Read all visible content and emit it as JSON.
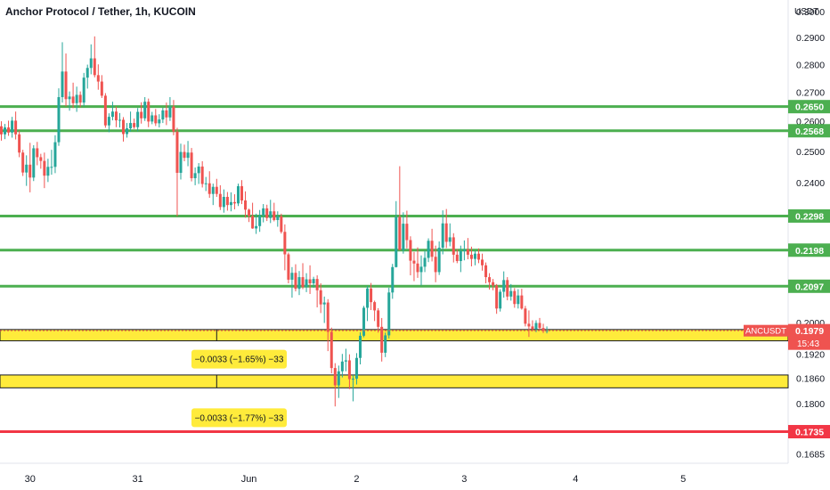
{
  "header": {
    "title": "Anchor Protocol / Tether, 1h, KUCOIN"
  },
  "colors": {
    "up": "#26a69a",
    "down": "#ef5350",
    "level_green": "#4caf50",
    "level_red": "#f23645",
    "zone_fill": "#ffeb3b",
    "current_price_tag": "#ef5350",
    "axis_text": "#131722"
  },
  "chart_data": {
    "type": "candlestick",
    "title": "Anchor Protocol / Tether, 1h, KUCOIN",
    "symbol": "ANCUSDT",
    "currency": "USDT",
    "ylim": [
      0.1665,
      0.3045
    ],
    "y_scale": "log",
    "y_ticks": [
      "0.3000",
      "0.2900",
      "0.2800",
      "0.2700",
      "0.2600",
      "0.2500",
      "0.2400",
      "0.2300",
      "0.2200",
      "0.2100",
      "0.2000",
      "0.1920",
      "0.1860",
      "0.1800",
      "0.1685"
    ],
    "x_ticks": [
      {
        "label": "30",
        "slot": 8
      },
      {
        "label": "31",
        "slot": 38
      },
      {
        "label": "Jun",
        "slot": 69
      },
      {
        "label": "2",
        "slot": 99
      },
      {
        "label": "3",
        "slot": 129
      },
      {
        "label": "4",
        "slot": 160
      },
      {
        "label": "5",
        "slot": 190
      }
    ],
    "horizontal_levels": [
      {
        "price": 0.265,
        "label": "0.2650",
        "color": "green"
      },
      {
        "price": 0.2568,
        "label": "0.2568",
        "color": "green"
      },
      {
        "price": 0.2298,
        "label": "0.2298",
        "color": "green"
      },
      {
        "price": 0.2198,
        "label": "0.2198",
        "color": "green"
      },
      {
        "price": 0.2097,
        "label": "0.2097",
        "color": "green"
      },
      {
        "price": 0.1735,
        "label": "0.1735",
        "color": "red"
      }
    ],
    "zones": [
      {
        "top": 0.1982,
        "bottom": 0.1953,
        "label": "−0.0033 (−1.65%) −33",
        "divider_slot": 60
      },
      {
        "top": 0.1868,
        "bottom": 0.1837,
        "label": "−0.0033 (−1.77%) −33",
        "divider_slot": 60
      }
    ],
    "current_price": {
      "value": 0.1979,
      "label": "0.1979",
      "symbol_label": "ANCUSDT",
      "countdown": "15:43"
    },
    "candles": [
      [
        0.2583,
        0.26,
        0.2535,
        0.2556
      ],
      [
        0.2556,
        0.2591,
        0.254,
        0.2579
      ],
      [
        0.2579,
        0.2602,
        0.2551,
        0.2562
      ],
      [
        0.2562,
        0.2615,
        0.2545,
        0.2602
      ],
      [
        0.2602,
        0.2633,
        0.2539,
        0.2556
      ],
      [
        0.2556,
        0.2568,
        0.2481,
        0.2496
      ],
      [
        0.2496,
        0.2505,
        0.2421,
        0.2432
      ],
      [
        0.2432,
        0.2487,
        0.239,
        0.2457
      ],
      [
        0.2457,
        0.2528,
        0.237,
        0.2416
      ],
      [
        0.2416,
        0.252,
        0.2405,
        0.251
      ],
      [
        0.251,
        0.2531,
        0.2455,
        0.2481
      ],
      [
        0.2481,
        0.2492,
        0.2444,
        0.2469
      ],
      [
        0.2469,
        0.2496,
        0.2383,
        0.2422
      ],
      [
        0.2422,
        0.2476,
        0.2402,
        0.245
      ],
      [
        0.245,
        0.2505,
        0.2425,
        0.245
      ],
      [
        0.245,
        0.2553,
        0.243,
        0.253
      ],
      [
        0.253,
        0.2714,
        0.2518,
        0.2683
      ],
      [
        0.2683,
        0.2882,
        0.2664,
        0.2774
      ],
      [
        0.2774,
        0.284,
        0.2651,
        0.2676
      ],
      [
        0.2676,
        0.2703,
        0.2636,
        0.2685
      ],
      [
        0.2685,
        0.2734,
        0.2645,
        0.2662
      ],
      [
        0.2662,
        0.272,
        0.2632,
        0.2691
      ],
      [
        0.2691,
        0.2703,
        0.2648,
        0.2664
      ],
      [
        0.2664,
        0.2769,
        0.2651,
        0.2752
      ],
      [
        0.2752,
        0.2799,
        0.2713,
        0.2787
      ],
      [
        0.2787,
        0.2874,
        0.2764,
        0.2822
      ],
      [
        0.2822,
        0.2904,
        0.2753,
        0.2761
      ],
      [
        0.2761,
        0.28,
        0.2709,
        0.2738
      ],
      [
        0.2738,
        0.2761,
        0.268,
        0.2688
      ],
      [
        0.2688,
        0.2697,
        0.2578,
        0.2586
      ],
      [
        0.2586,
        0.2627,
        0.2563,
        0.2615
      ],
      [
        0.2615,
        0.2667,
        0.2603,
        0.2633
      ],
      [
        0.2633,
        0.265,
        0.258,
        0.2603
      ],
      [
        0.2603,
        0.2628,
        0.2579,
        0.2605
      ],
      [
        0.2605,
        0.2614,
        0.2532,
        0.2557
      ],
      [
        0.2557,
        0.2594,
        0.2545,
        0.2576
      ],
      [
        0.2576,
        0.2633,
        0.2565,
        0.2594
      ],
      [
        0.2594,
        0.2609,
        0.2574,
        0.258
      ],
      [
        0.258,
        0.2645,
        0.2566,
        0.2632
      ],
      [
        0.2632,
        0.2665,
        0.2592,
        0.261
      ],
      [
        0.261,
        0.2683,
        0.2601,
        0.2667
      ],
      [
        0.2667,
        0.2678,
        0.258,
        0.2599
      ],
      [
        0.2599,
        0.2632,
        0.259,
        0.262
      ],
      [
        0.262,
        0.2642,
        0.2584,
        0.2593
      ],
      [
        0.2593,
        0.2624,
        0.2579,
        0.2606
      ],
      [
        0.2606,
        0.2646,
        0.2594,
        0.2637
      ],
      [
        0.2637,
        0.2664,
        0.2587,
        0.2613
      ],
      [
        0.2613,
        0.2683,
        0.2601,
        0.265
      ],
      [
        0.265,
        0.2673,
        0.2553,
        0.2565
      ],
      [
        0.2565,
        0.2578,
        0.2297,
        0.2431
      ],
      [
        0.2431,
        0.2525,
        0.241,
        0.2498
      ],
      [
        0.2498,
        0.2522,
        0.2468,
        0.2479
      ],
      [
        0.2479,
        0.2534,
        0.2452,
        0.2496
      ],
      [
        0.2496,
        0.2511,
        0.2404,
        0.2414
      ],
      [
        0.2414,
        0.2448,
        0.2392,
        0.243
      ],
      [
        0.243,
        0.2462,
        0.2396,
        0.2451
      ],
      [
        0.2451,
        0.2468,
        0.2385,
        0.2396
      ],
      [
        0.2396,
        0.2418,
        0.2374,
        0.2398
      ],
      [
        0.2398,
        0.2436,
        0.2353,
        0.2365
      ],
      [
        0.2365,
        0.2397,
        0.2331,
        0.2387
      ],
      [
        0.2387,
        0.2412,
        0.2356,
        0.2365
      ],
      [
        0.2365,
        0.2392,
        0.2316,
        0.2325
      ],
      [
        0.2325,
        0.2379,
        0.2308,
        0.2356
      ],
      [
        0.2356,
        0.2371,
        0.2314,
        0.2331
      ],
      [
        0.2331,
        0.237,
        0.2312,
        0.234
      ],
      [
        0.234,
        0.2364,
        0.2318,
        0.2336
      ],
      [
        0.2336,
        0.2397,
        0.2328,
        0.2389
      ],
      [
        0.2389,
        0.2408,
        0.2334,
        0.2345
      ],
      [
        0.2345,
        0.2373,
        0.2293,
        0.2317
      ],
      [
        0.2317,
        0.232,
        0.228,
        0.2298
      ],
      [
        0.2298,
        0.2338,
        0.226,
        0.2261
      ],
      [
        0.2261,
        0.2305,
        0.2245,
        0.2268
      ],
      [
        0.2268,
        0.2316,
        0.2251,
        0.23
      ],
      [
        0.23,
        0.2334,
        0.2279,
        0.2321
      ],
      [
        0.2321,
        0.2332,
        0.2283,
        0.2292
      ],
      [
        0.2292,
        0.2347,
        0.2277,
        0.2312
      ],
      [
        0.2312,
        0.2338,
        0.2282,
        0.2286
      ],
      [
        0.2286,
        0.2312,
        0.2266,
        0.2297
      ],
      [
        0.2297,
        0.2305,
        0.2246,
        0.2251
      ],
      [
        0.2251,
        0.2273,
        0.2141,
        0.2186
      ],
      [
        0.2186,
        0.2191,
        0.2105,
        0.2115
      ],
      [
        0.2115,
        0.215,
        0.2066,
        0.2134
      ],
      [
        0.2134,
        0.2158,
        0.2083,
        0.209
      ],
      [
        0.209,
        0.2139,
        0.2073,
        0.2122
      ],
      [
        0.2122,
        0.2161,
        0.2089,
        0.2095
      ],
      [
        0.2095,
        0.2133,
        0.2081,
        0.2116
      ],
      [
        0.2116,
        0.2155,
        0.2076,
        0.2105
      ],
      [
        0.2105,
        0.2123,
        0.2093,
        0.2117
      ],
      [
        0.2117,
        0.2127,
        0.204,
        0.2086
      ],
      [
        0.2086,
        0.2105,
        0.2025,
        0.2048
      ],
      [
        0.2048,
        0.2069,
        0.1999,
        0.2053
      ],
      [
        0.2053,
        0.2062,
        0.1927,
        0.1976
      ],
      [
        0.1976,
        0.1987,
        0.1872,
        0.1885
      ],
      [
        0.1885,
        0.1897,
        0.1793,
        0.1843
      ],
      [
        0.1843,
        0.1891,
        0.1813,
        0.1877
      ],
      [
        0.1877,
        0.192,
        0.1862,
        0.1901
      ],
      [
        0.1901,
        0.1933,
        0.1877,
        0.1904
      ],
      [
        0.1904,
        0.1919,
        0.1834,
        0.1858
      ],
      [
        0.1858,
        0.1868,
        0.1805,
        0.1859
      ],
      [
        0.1859,
        0.1922,
        0.1845,
        0.191
      ],
      [
        0.191,
        0.1975,
        0.1894,
        0.1966
      ],
      [
        0.1966,
        0.2044,
        0.1962,
        0.2039
      ],
      [
        0.2039,
        0.2098,
        0.2004,
        0.2091
      ],
      [
        0.2091,
        0.2106,
        0.2033,
        0.2054
      ],
      [
        0.2054,
        0.2058,
        0.2004,
        0.2032
      ],
      [
        0.2032,
        0.2038,
        0.1974,
        0.1989
      ],
      [
        0.1989,
        0.2012,
        0.1901,
        0.1923
      ],
      [
        0.1923,
        0.1974,
        0.1912,
        0.1967
      ],
      [
        0.1967,
        0.2093,
        0.1959,
        0.208
      ],
      [
        0.208,
        0.2159,
        0.2063,
        0.215
      ],
      [
        0.215,
        0.2343,
        0.2149,
        0.2295
      ],
      [
        0.2295,
        0.2452,
        0.2198,
        0.2198
      ],
      [
        0.2198,
        0.2309,
        0.2188,
        0.2275
      ],
      [
        0.2275,
        0.2314,
        0.2203,
        0.2227
      ],
      [
        0.2227,
        0.2238,
        0.2127,
        0.2168
      ],
      [
        0.2168,
        0.2193,
        0.2111,
        0.216
      ],
      [
        0.216,
        0.2206,
        0.212,
        0.2136
      ],
      [
        0.2136,
        0.2183,
        0.2099,
        0.2151
      ],
      [
        0.2151,
        0.2197,
        0.2136,
        0.2176
      ],
      [
        0.2176,
        0.2232,
        0.2164,
        0.2225
      ],
      [
        0.2225,
        0.226,
        0.2166,
        0.2179
      ],
      [
        0.2179,
        0.2211,
        0.2108,
        0.2136
      ],
      [
        0.2136,
        0.2223,
        0.2128,
        0.2205
      ],
      [
        0.2205,
        0.2315,
        0.2186,
        0.2276
      ],
      [
        0.2276,
        0.2319,
        0.2204,
        0.2222
      ],
      [
        0.2222,
        0.2276,
        0.2209,
        0.2235
      ],
      [
        0.2235,
        0.2247,
        0.2163,
        0.2185
      ],
      [
        0.2185,
        0.2201,
        0.2161,
        0.2167
      ],
      [
        0.2167,
        0.2211,
        0.2136,
        0.2195
      ],
      [
        0.2195,
        0.2226,
        0.2169,
        0.22
      ],
      [
        0.22,
        0.2233,
        0.2172,
        0.2185
      ],
      [
        0.2185,
        0.2208,
        0.2152,
        0.2173
      ],
      [
        0.2173,
        0.2197,
        0.2155,
        0.2188
      ],
      [
        0.2188,
        0.2203,
        0.2161,
        0.2171
      ],
      [
        0.2171,
        0.2188,
        0.214,
        0.2155
      ],
      [
        0.2155,
        0.2163,
        0.2105,
        0.2122
      ],
      [
        0.2122,
        0.2133,
        0.2088,
        0.2108
      ],
      [
        0.2108,
        0.2117,
        0.2086,
        0.2099
      ],
      [
        0.2099,
        0.2103,
        0.2023,
        0.2037
      ],
      [
        0.2037,
        0.2089,
        0.2029,
        0.2082
      ],
      [
        0.2082,
        0.2138,
        0.2066,
        0.2114
      ],
      [
        0.2114,
        0.2122,
        0.2059,
        0.2069
      ],
      [
        0.2069,
        0.2103,
        0.2058,
        0.2084
      ],
      [
        0.2084,
        0.2092,
        0.2039,
        0.2049
      ],
      [
        0.2049,
        0.2089,
        0.2037,
        0.2072
      ],
      [
        0.2072,
        0.209,
        0.2034,
        0.2037
      ],
      [
        0.2037,
        0.2044,
        0.199,
        0.1997
      ],
      [
        0.1997,
        0.2032,
        0.1963,
        0.199
      ],
      [
        0.199,
        0.2006,
        0.1977,
        0.1983
      ],
      [
        0.1983,
        0.2006,
        0.1975,
        0.1999
      ],
      [
        0.1999,
        0.2012,
        0.1979,
        0.1986
      ],
      [
        0.1986,
        0.1997,
        0.1973,
        0.1978
      ],
      [
        0.1978,
        0.199,
        0.1972,
        0.1979
      ]
    ]
  }
}
